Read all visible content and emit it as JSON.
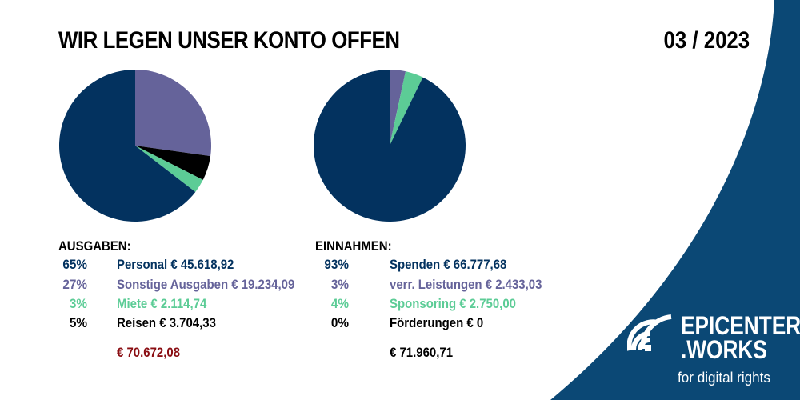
{
  "header": {
    "title": "WIR LEGEN UNSER KONTO OFFEN",
    "period": "03 / 2023"
  },
  "colors": {
    "dark_blue": "#03325f",
    "purple": "#65639a",
    "green": "#5ccc96",
    "black": "#000000",
    "total_red": "#8a0d12",
    "swoosh": "#0b4875"
  },
  "chart_data": [
    {
      "type": "pie",
      "title": "AUSGABEN:",
      "total": "€ 70.672,08",
      "slices": [
        {
          "percent_label": "65%",
          "label": "Personal € 45.618,92",
          "value": 45618.92,
          "color": "#03325f"
        },
        {
          "percent_label": "27%",
          "label": "Sonstige Ausgaben € 19.234,09",
          "value": 19234.09,
          "color": "#65639a"
        },
        {
          "percent_label": "3%",
          "label": "Miete € 2.114,74",
          "value": 2114.74,
          "color": "#5ccc96"
        },
        {
          "percent_label": "5%",
          "label": "Reisen € 3.704,33",
          "value": 3704.33,
          "color": "#000000"
        }
      ]
    },
    {
      "type": "pie",
      "title": "EINNAHMEN:",
      "total": "€ 71.960,71",
      "slices": [
        {
          "percent_label": "93%",
          "label": "Spenden € 66.777,68",
          "value": 66777.68,
          "color": "#03325f"
        },
        {
          "percent_label": "3%",
          "label": "verr. Leistungen € 2.433,03",
          "value": 2433.03,
          "color": "#65639a"
        },
        {
          "percent_label": "4%",
          "label": "Sponsoring € 2.750,00",
          "value": 2750.0,
          "color": "#5ccc96"
        },
        {
          "percent_label": "0%",
          "label": "Förderungen  € 0",
          "value": 0,
          "color": "#000000"
        }
      ]
    }
  ],
  "logo": {
    "line1": "EPICENTER",
    "line2": ".WORKS",
    "tagline": "for digital rights"
  }
}
